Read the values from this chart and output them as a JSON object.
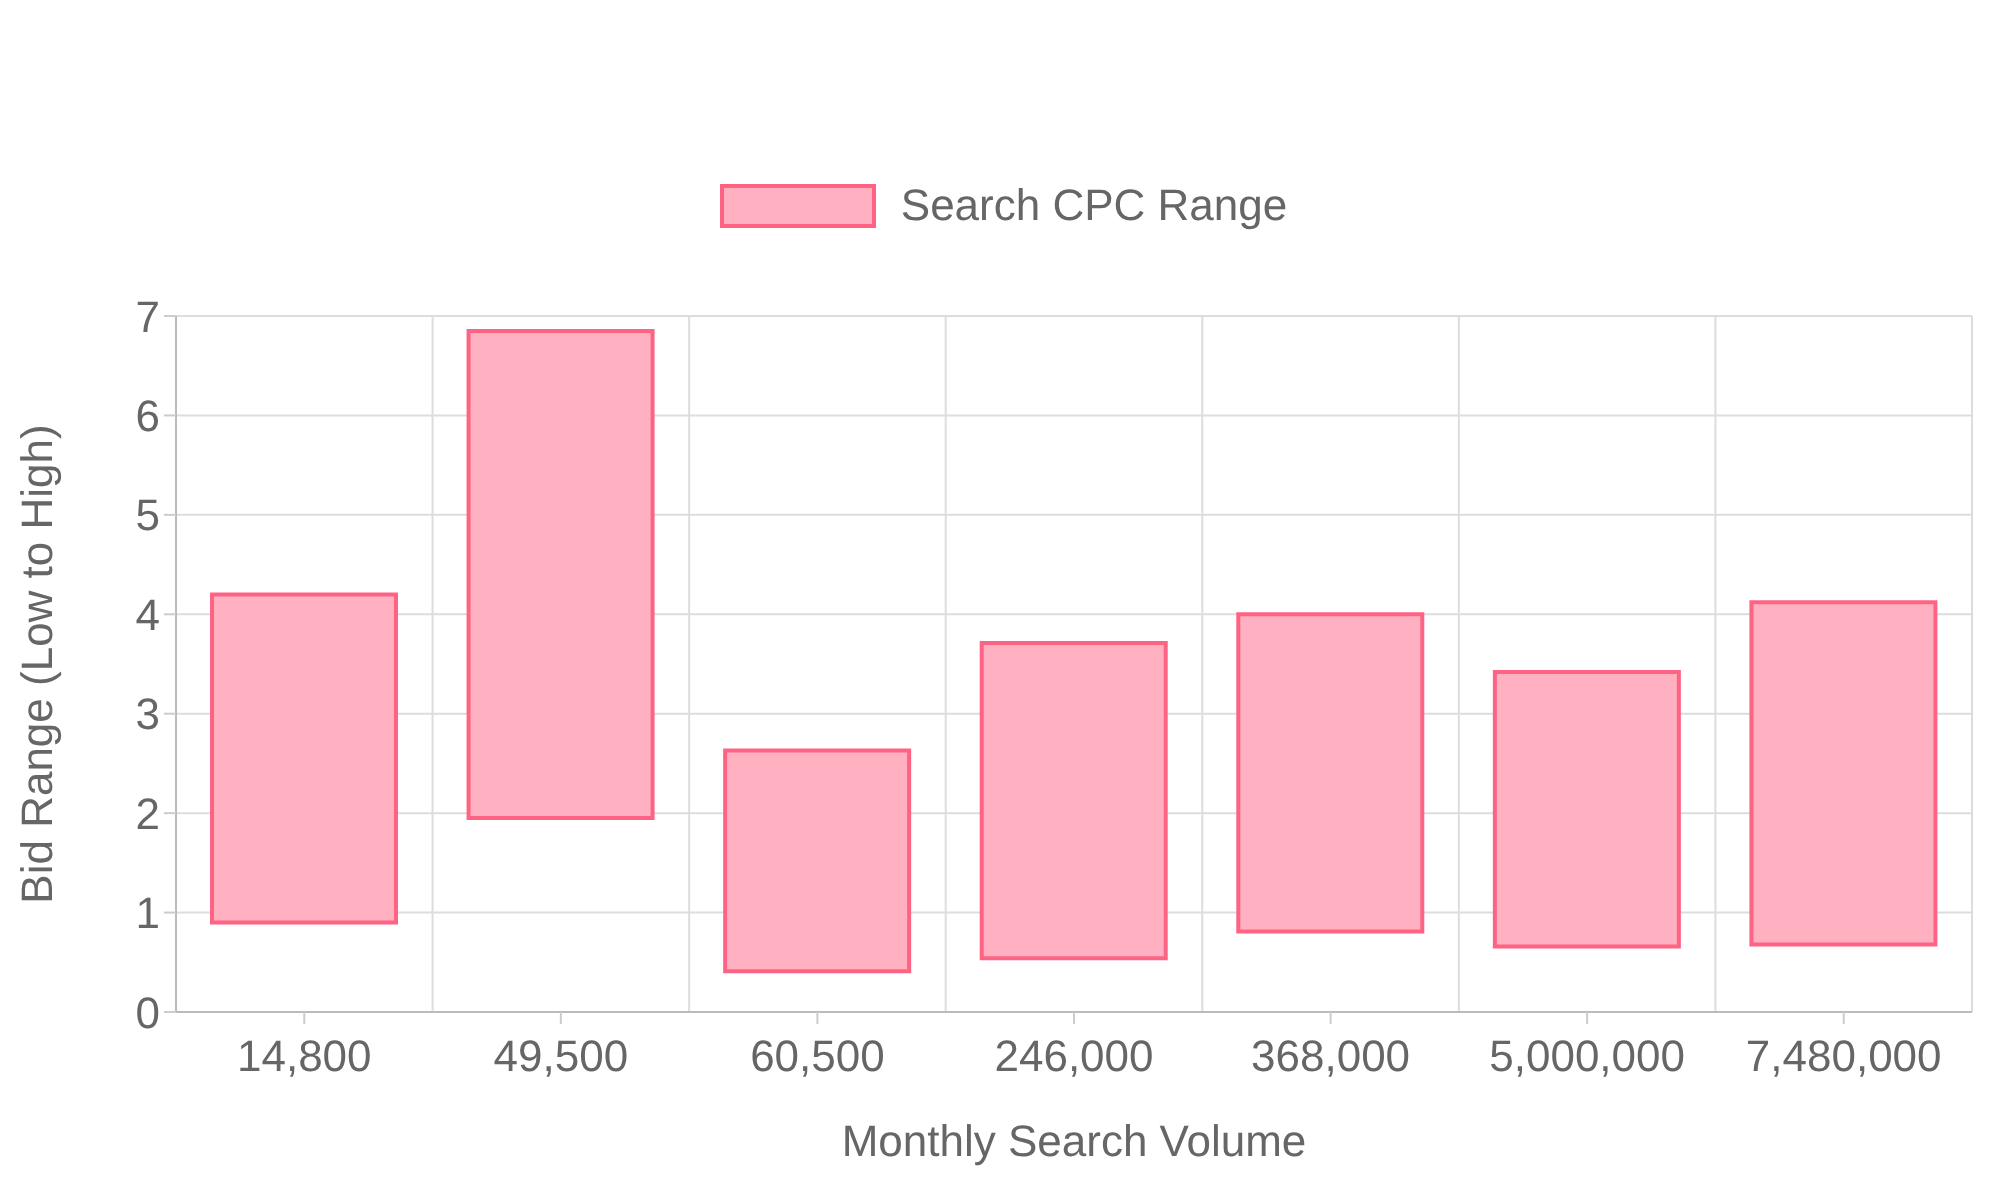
{
  "chart_data": {
    "type": "bar",
    "xlabel": "Monthly Search Volume",
    "ylabel": "Bid Range (Low to High)",
    "categories": [
      "14,800",
      "49,500",
      "60,500",
      "246,000",
      "368,000",
      "5,000,000",
      "7,480,000"
    ],
    "series": [
      {
        "name": "Search CPC Range",
        "color": "#ffb1c1",
        "values": [
          3.3,
          4.9,
          2.22,
          3.17,
          3.19,
          2.76,
          3.44
        ],
        "base": [
          0.9,
          1.95,
          0.41,
          0.54,
          0.81,
          0.66,
          0.68
        ]
      }
    ],
    "ylim": [
      0,
      7
    ],
    "yticks": [
      0,
      1,
      2,
      3,
      4,
      5,
      6,
      7
    ],
    "grid": true,
    "legend": "top"
  }
}
